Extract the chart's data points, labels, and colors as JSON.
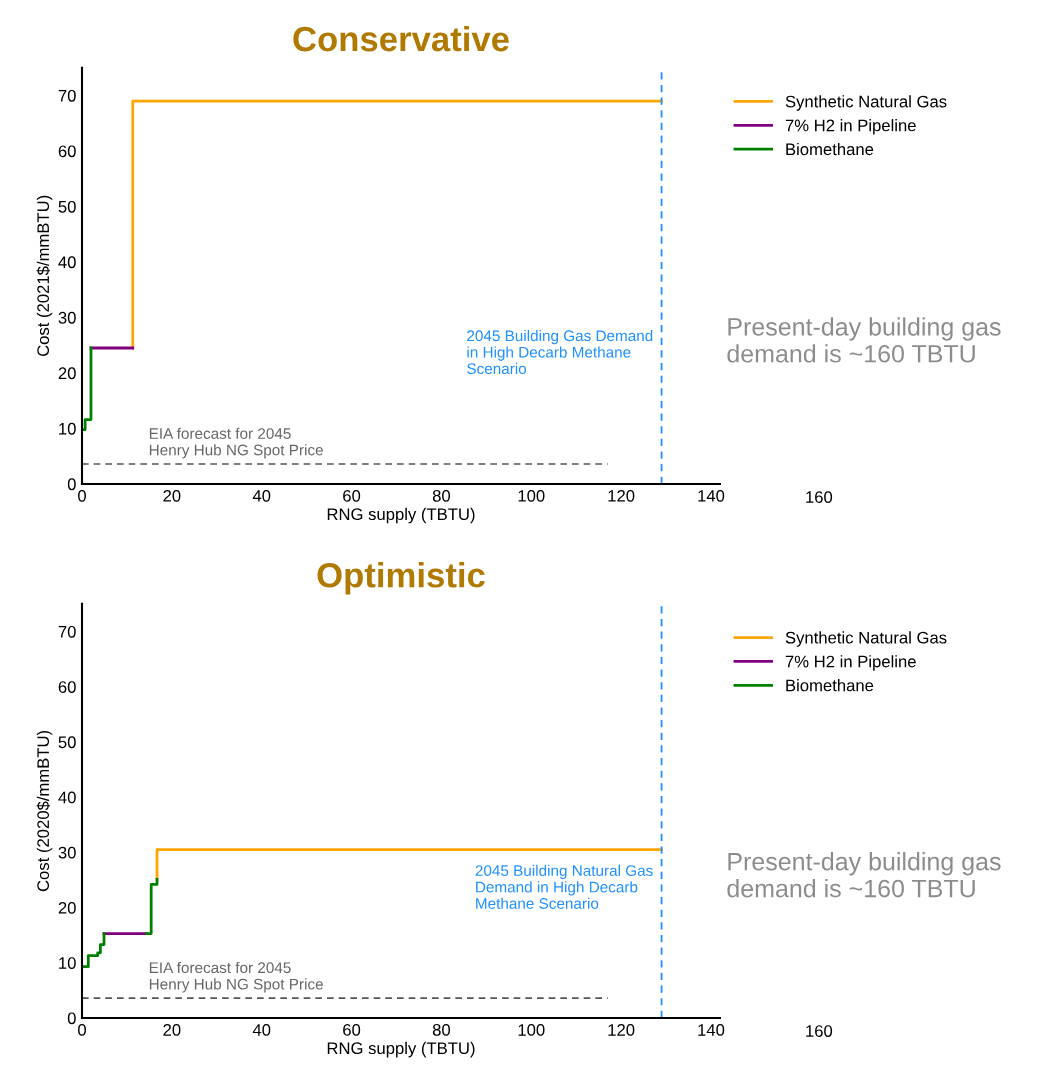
{
  "chart_data": [
    {
      "type": "step",
      "title": "Conservative",
      "xlabel": "RNG supply (TBTU)",
      "ylabel": "Cost (2021$/mmBTU)",
      "xlim": [
        0,
        142
      ],
      "xticks": [
        0,
        20,
        40,
        60,
        80,
        100,
        120,
        140
      ],
      "ylim": [
        0,
        75
      ],
      "yticks": [
        0,
        10,
        20,
        30,
        40,
        50,
        60,
        70
      ],
      "grid": false,
      "legend": "right",
      "marker": "none",
      "series": [
        {
          "name": "Synthetic Natural Gas",
          "color": "#ffa500",
          "x": [
            11.3,
            11.3,
            129
          ],
          "values": [
            24.5,
            69,
            69
          ]
        },
        {
          "name": "7% H2 in Pipeline",
          "color": "#800080",
          "x": [
            2,
            11.3
          ],
          "values": [
            24.5,
            24.5
          ]
        },
        {
          "name": "Biomethane",
          "color": "#008000",
          "x": [
            0,
            0.7,
            2
          ],
          "values": [
            9.8,
            11.6,
            24.5
          ]
        },
        {
          "type": "line",
          "name": "EIA forecast for 2045\nHenry Hub NG Spot Price",
          "color": "#555555",
          "line_style": "dashed",
          "x": [
            0,
            117
          ],
          "values": [
            3.6,
            3.6
          ]
        }
      ],
      "ref_lines": [
        {
          "axis": "x",
          "value": 129,
          "color": "#1e90ff",
          "line_style": "dashed",
          "label": "2045 Building Gas Demand\nin High Decarb Methane\nScenario"
        }
      ],
      "annotations": [
        "Present-day building gas\ndemand is ~160 TBTU",
        "160"
      ]
    },
    {
      "type": "step",
      "title": "Optimistic",
      "xlabel": "RNG supply (TBTU)",
      "ylabel": "Cost (2020$/mmBTU)",
      "xlim": [
        0,
        142
      ],
      "xticks": [
        0,
        20,
        40,
        60,
        80,
        100,
        120,
        140
      ],
      "ylim": [
        0,
        75
      ],
      "yticks": [
        0,
        10,
        20,
        30,
        40,
        50,
        60,
        70
      ],
      "grid": false,
      "legend": "right",
      "marker": "none",
      "series": [
        {
          "name": "Synthetic Natural Gas",
          "color": "#ffa500",
          "x": [
            16.7,
            16.7,
            129
          ],
          "values": [
            25.1,
            30.5,
            30.5
          ]
        },
        {
          "name": "7% H2 in Pipeline",
          "color": "#800080",
          "x": [
            4.9,
            14.4
          ],
          "values": [
            15.3,
            15.3
          ]
        },
        {
          "name": "Biomethane",
          "color": "#008000",
          "x": [
            0,
            1.4,
            3.5,
            4.1,
            4.9,
            4.9
          ],
          "values": [
            9.3,
            11.3,
            11.8,
            13.3,
            15.3,
            15.3
          ]
        },
        {
          "color": "#008000",
          "x": [
            14.4,
            15.4,
            16.7
          ],
          "values": [
            15.3,
            24.2,
            25.1
          ]
        },
        {
          "type": "line",
          "name": "EIA forecast for 2045\nHenry Hub NG Spot Price",
          "color": "#555555",
          "line_style": "dashed",
          "x": [
            0,
            117
          ],
          "values": [
            3.6,
            3.6
          ]
        }
      ],
      "ref_lines": [
        {
          "axis": "x",
          "value": 129,
          "color": "#1e90ff",
          "line_style": "dashed",
          "label": "2045 Building Natural Gas\nDemand in High Decarb\nMethane Scenario"
        }
      ],
      "annotations": [
        "Present-day building gas\ndemand is ~160 TBTU",
        "160"
      ]
    }
  ]
}
